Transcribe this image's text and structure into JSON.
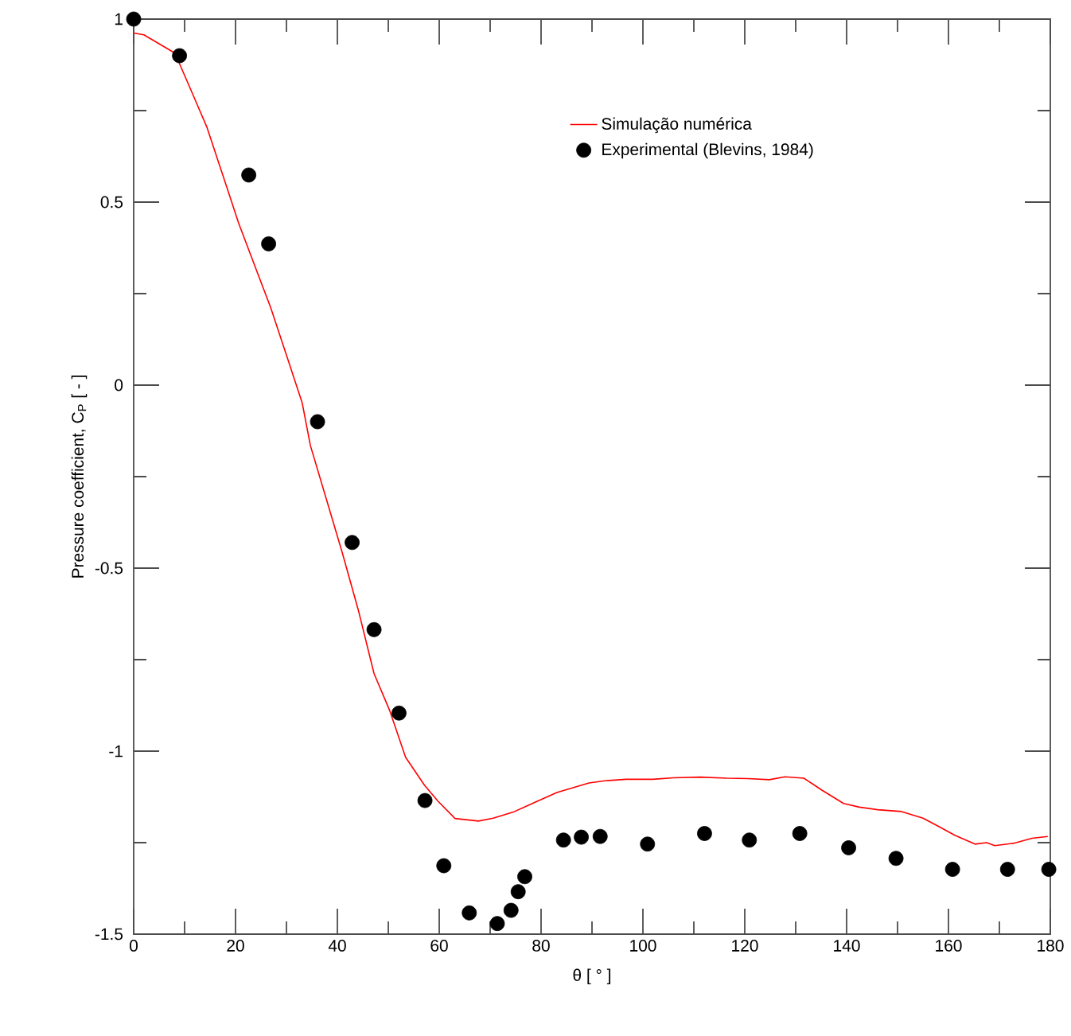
{
  "chart_data": {
    "type": "line",
    "xlabel": "θ [ ° ]",
    "ylabel": "Pressure coefficient, C$_{P}$ [ - ]",
    "xlim": [
      0,
      180
    ],
    "xticks": [
      0,
      20,
      40,
      60,
      80,
      100,
      120,
      140,
      160,
      180
    ],
    "ylim": [
      -1.5,
      1
    ],
    "yticks": [
      -1.5,
      -1,
      -0.5,
      0,
      0.5,
      1
    ],
    "grid": false,
    "legend": "top right",
    "series": [
      {
        "name": "Simulação numérica",
        "color": "#ff0000",
        "line_style": "solid",
        "marker": "none",
        "x": [
          0,
          2,
          8.1,
          11.25,
          14.4,
          17.5,
          20.6,
          23.75,
          26.9,
          30,
          33.1,
          34.7,
          37.8,
          40.9,
          44.1,
          47.2,
          50.3,
          53.4,
          57.1,
          59.7,
          63.1,
          67.7,
          70.6,
          74.8,
          78.9,
          83.1,
          89.4,
          92.5,
          96.7,
          101.9,
          106,
          111.25,
          116.5,
          120.6,
          124.8,
          127.9,
          131.6,
          135.2,
          139.4,
          142.5,
          146.1,
          150.8,
          155,
          158.1,
          161.25,
          165.2,
          167.5,
          169.1,
          172.7,
          176.4,
          179.5
        ],
        "values": [
          0.962,
          0.957,
          0.907,
          0.806,
          0.704,
          0.574,
          0.443,
          0.327,
          0.212,
          0.082,
          -0.049,
          -0.165,
          -0.31,
          -0.455,
          -0.614,
          -0.788,
          -0.89,
          -1.017,
          -1.093,
          -1.136,
          -1.184,
          -1.191,
          -1.183,
          -1.165,
          -1.139,
          -1.113,
          -1.087,
          -1.081,
          -1.077,
          -1.077,
          -1.073,
          -1.071,
          -1.074,
          -1.075,
          -1.078,
          -1.07,
          -1.074,
          -1.107,
          -1.143,
          -1.153,
          -1.16,
          -1.165,
          -1.183,
          -1.206,
          -1.23,
          -1.254,
          -1.25,
          -1.258,
          -1.252,
          -1.238,
          -1.233
        ]
      },
      {
        "name": "Experimental (Blevins, 1984)",
        "type": "scatter",
        "color": "#000000",
        "marker": "circle",
        "x": [
          0,
          9,
          22.6,
          26.5,
          36.1,
          42.9,
          47.2,
          52.1,
          57.2,
          60.9,
          65.9,
          71.4,
          74.1,
          75.5,
          76.8,
          84.4,
          87.9,
          91.6,
          100.9,
          112.1,
          120.9,
          130.8,
          140.4,
          149.7,
          160.8,
          171.6,
          179.7
        ],
        "values": [
          1.0,
          0.9,
          0.574,
          0.386,
          -0.1,
          -0.43,
          -0.668,
          -0.896,
          -1.135,
          -1.313,
          -1.442,
          -1.471,
          -1.435,
          -1.384,
          -1.343,
          -1.243,
          -1.235,
          -1.233,
          -1.254,
          -1.225,
          -1.243,
          -1.225,
          -1.264,
          -1.293,
          -1.323,
          -1.323,
          -1.323
        ]
      }
    ]
  }
}
